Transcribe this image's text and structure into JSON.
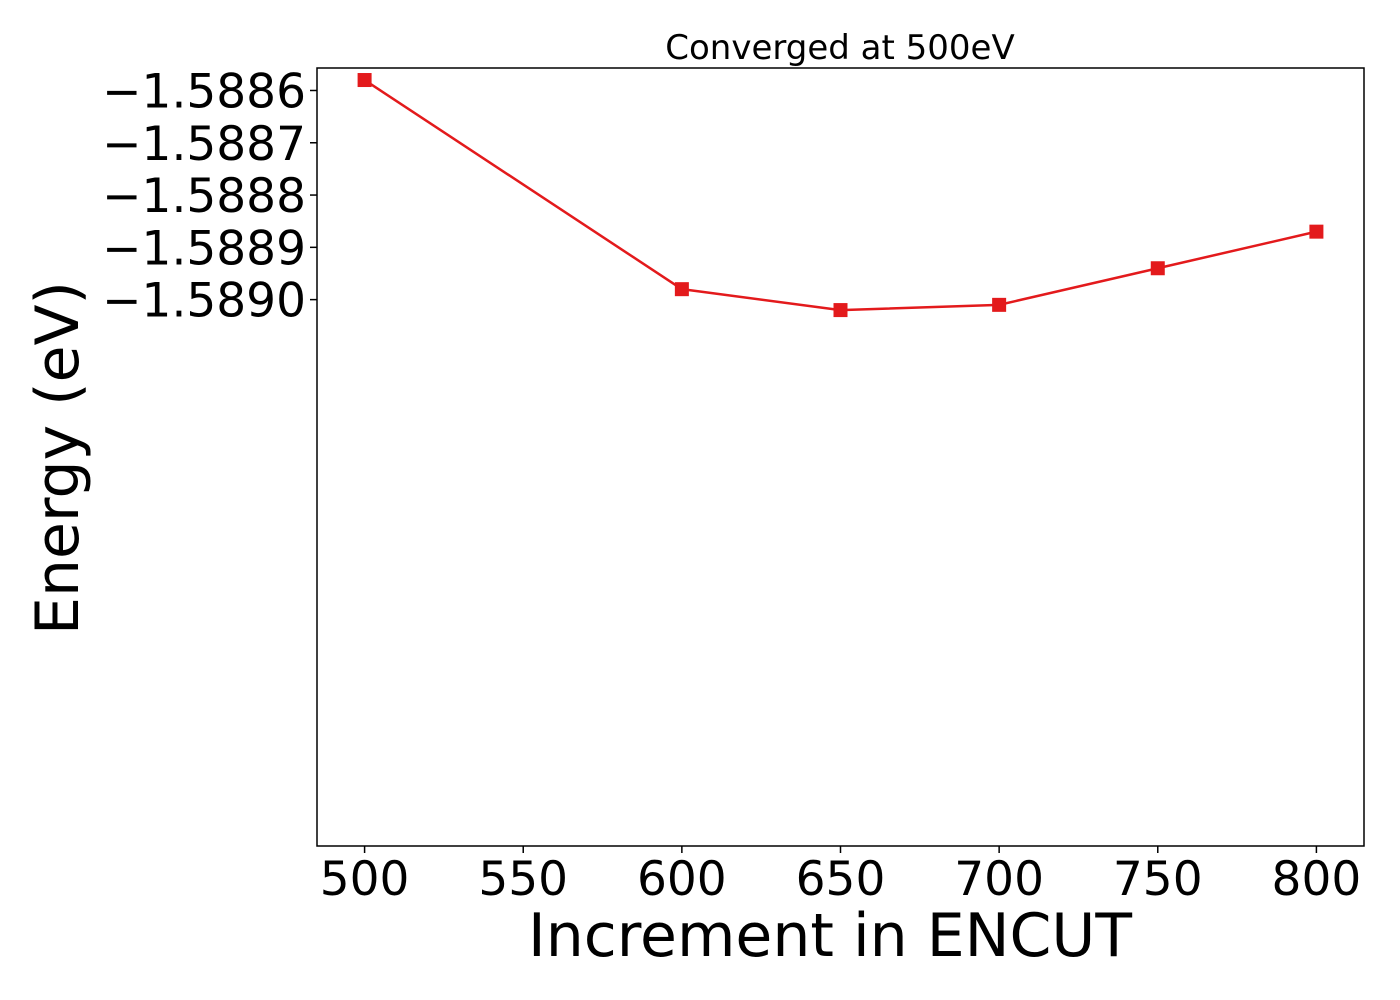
{
  "chart_data": {
    "type": "line",
    "title": "Converged at 500eV",
    "xlabel": "Increment in ENCUT",
    "ylabel": "Energy (eV)",
    "x": [
      500,
      600,
      650,
      700,
      750,
      800
    ],
    "series": [
      {
        "values": [
          -1.58858,
          -1.58898,
          -1.58902,
          -1.58901,
          -1.58894,
          -1.58887
        ],
        "color": "#e31a1c",
        "marker": "square"
      }
    ],
    "xlim": [
      485,
      815
    ],
    "ylim": [
      -1.590045,
      -1.588557
    ],
    "xticks": [
      500,
      550,
      600,
      650,
      700,
      750,
      800
    ],
    "xtick_labels": [
      "500",
      "550",
      "600",
      "650",
      "700",
      "750",
      "800"
    ],
    "yticks": [
      -1.5886,
      -1.5887,
      -1.5888,
      -1.5889,
      -1.589
    ],
    "ytick_labels": [
      "−1.5886",
      "−1.5887",
      "−1.5888",
      "−1.5889",
      "−1.5890"
    ],
    "grid": false,
    "legend": "none"
  }
}
